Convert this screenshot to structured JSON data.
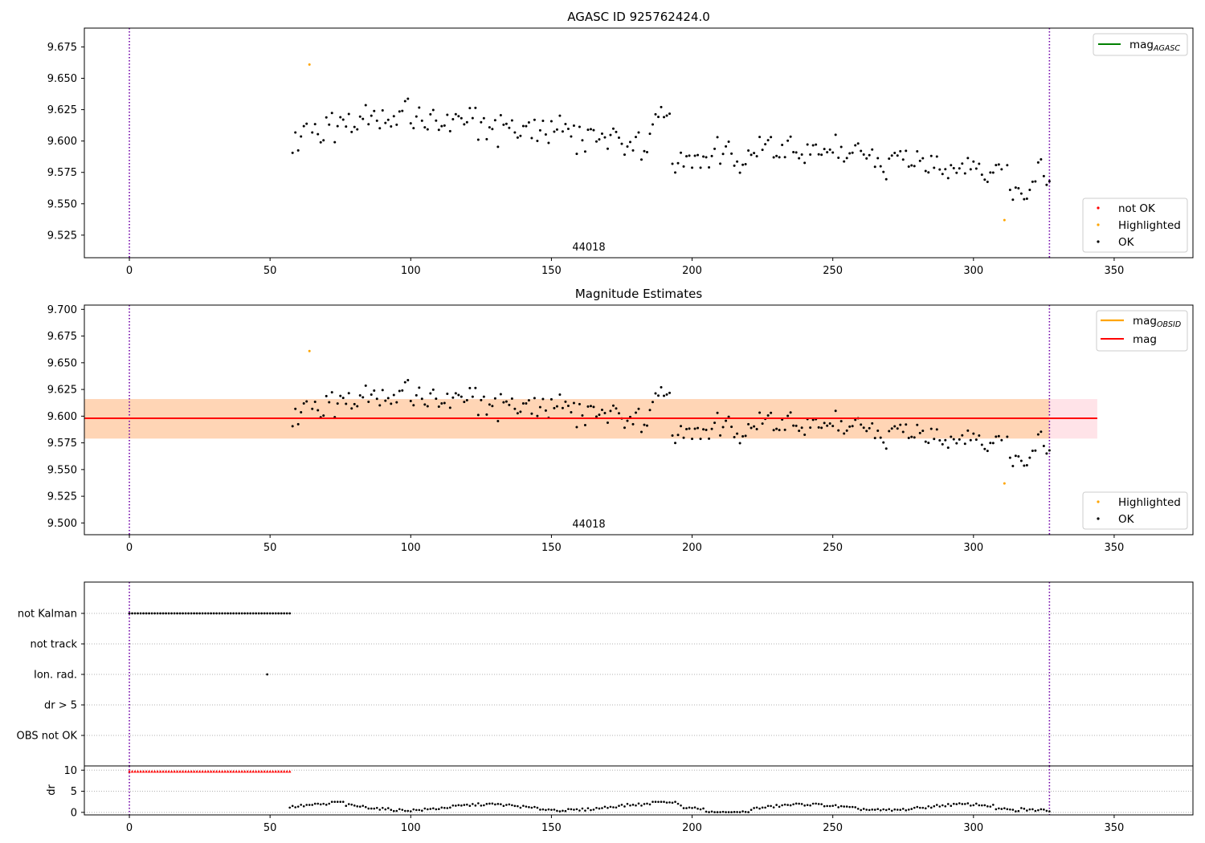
{
  "chart_data": [
    {
      "name": "agasc-panel",
      "type": "scatter",
      "title": "AGASC ID 925762424.0",
      "annotation": "44018",
      "xlim": [
        -16,
        378
      ],
      "ylim": [
        9.507,
        9.69
      ],
      "xticks": [
        0,
        50,
        100,
        150,
        200,
        250,
        300,
        350
      ],
      "yticks": [
        9.525,
        9.55,
        9.575,
        9.6,
        9.625,
        9.65,
        9.675
      ],
      "yticklabels": [
        "9.525",
        "9.550",
        "9.575",
        "9.600",
        "9.625",
        "9.650",
        "9.675"
      ],
      "vlines": [
        0,
        327
      ],
      "legends": [
        {
          "position": "upper-right",
          "entries": [
            {
              "label": "mag",
              "sub": "AGASC",
              "color": "#008000",
              "kind": "line"
            }
          ]
        },
        {
          "position": "lower-right",
          "entries": [
            {
              "label": "not OK",
              "color": "#ff0000",
              "kind": "dot"
            },
            {
              "label": "Highlighted",
              "color": "#ffa500",
              "kind": "dot"
            },
            {
              "label": "OK",
              "color": "#000000",
              "kind": "dot"
            }
          ]
        }
      ],
      "highlighted_points": [
        [
          64,
          9.661
        ],
        [
          311,
          9.537
        ]
      ]
    },
    {
      "name": "estimates-panel",
      "type": "scatter",
      "title": "Magnitude Estimates",
      "annotation": "44018",
      "xlim": [
        -16,
        378
      ],
      "ylim": [
        9.489,
        9.704
      ],
      "xticks": [
        0,
        50,
        100,
        150,
        200,
        250,
        300,
        350
      ],
      "yticks": [
        9.5,
        9.525,
        9.55,
        9.575,
        9.6,
        9.625,
        9.65,
        9.675,
        9.7
      ],
      "yticklabels": [
        "9.500",
        "9.525",
        "9.550",
        "9.575",
        "9.600",
        "9.625",
        "9.650",
        "9.675",
        "9.700"
      ],
      "vlines": [
        0,
        327
      ],
      "mag_line": {
        "value": 9.598,
        "x_range": [
          -16,
          344
        ],
        "color": "#ff0000"
      },
      "mag_band": {
        "low": 9.579,
        "high": 9.616,
        "x_range": [
          -16,
          344
        ],
        "color": "#ffc0cb"
      },
      "obsid_band": {
        "low": 9.579,
        "high": 9.616,
        "x_range": [
          -16,
          327
        ],
        "color": "#ffa500"
      },
      "legends": [
        {
          "position": "upper-right",
          "entries": [
            {
              "label": "mag",
              "sub": "OBSID",
              "color": "#ffa500",
              "kind": "line"
            },
            {
              "label": "mag",
              "color": "#ff0000",
              "kind": "line"
            }
          ]
        },
        {
          "position": "lower-right",
          "entries": [
            {
              "label": "Highlighted",
              "color": "#ffa500",
              "kind": "dot"
            },
            {
              "label": "OK",
              "color": "#000000",
              "kind": "dot"
            }
          ]
        }
      ],
      "highlighted_points": [
        [
          64,
          9.661
        ],
        [
          311,
          9.537
        ]
      ]
    },
    {
      "name": "flags-panel",
      "type": "scatter",
      "categories": [
        "not Kalman",
        "not track",
        "Ion. rad.",
        "dr > 5",
        "OBS not OK"
      ],
      "xlim": [
        -16,
        378
      ],
      "vlines": [
        0,
        327
      ],
      "flag_points": {
        "not Kalman": {
          "from": 0,
          "to": 57,
          "step": 1
        },
        "not track": [],
        "Ion. rad.": [
          49
        ],
        "dr > 5": [],
        "OBS not OK": []
      }
    },
    {
      "name": "dr-panel",
      "type": "scatter",
      "ylabel": "dr",
      "xlim": [
        -16,
        378
      ],
      "ylim": [
        -0.6,
        11
      ],
      "xticks": [
        0,
        50,
        100,
        150,
        200,
        250,
        300,
        350
      ],
      "yticks": [
        0,
        5,
        10
      ],
      "yticklabels": [
        "0",
        "5",
        "10"
      ],
      "vlines": [
        0,
        327
      ],
      "clipped_points": {
        "from": 0,
        "to": 57,
        "step": 1,
        "value": 9.7,
        "color": "#ff0000"
      }
    }
  ],
  "series_seed": {
    "x_range": [
      58,
      327
    ],
    "axis_labels_x": [
      "0",
      "50",
      "100",
      "150",
      "200",
      "250",
      "300",
      "350"
    ]
  }
}
